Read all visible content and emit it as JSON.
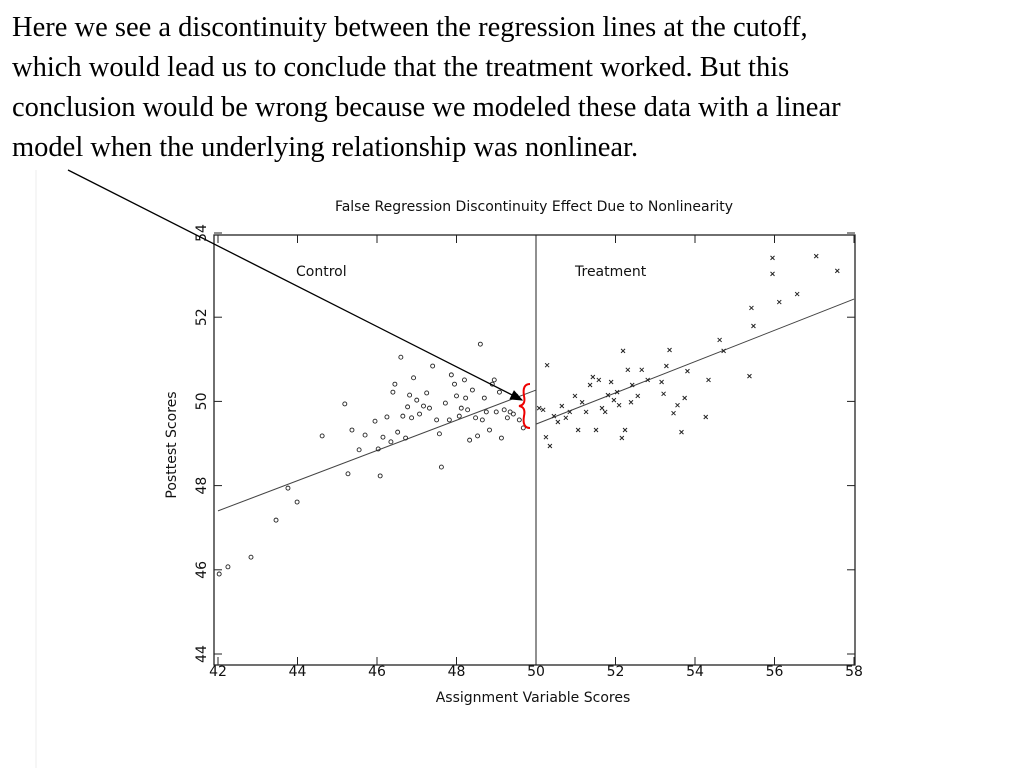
{
  "text_lines": [
    "Here we see a discontinuity between the regression lines at the cutoff,",
    "which would lead us to conclude that the treatment worked. But this",
    "conclusion would be wrong because we modeled these data with a linear",
    "model when the underlying relationship was nonlinear."
  ],
  "chart_data": {
    "type": "scatter",
    "title": "False Regression Discontinuity Effect Due to Nonlinearity",
    "x_label": "Assignment Variable Scores",
    "y_label": "Posttest Scores",
    "xlim": [
      42,
      58
    ],
    "ylim": [
      44,
      54
    ],
    "xticks": [
      42,
      44,
      46,
      48,
      50,
      52,
      54,
      56,
      58
    ],
    "yticks": [
      44,
      46,
      48,
      50,
      52,
      54
    ],
    "cutoff": 50,
    "series": [
      {
        "name": "Control",
        "marker": "circle",
        "color": "#222",
        "x": [
          42.03,
          42.25,
          42.83,
          43.46,
          43.76,
          43.99,
          44.62,
          45.19,
          45.27,
          45.37,
          45.55,
          45.7,
          45.95,
          46.03,
          46.08,
          46.15,
          46.25,
          46.35,
          46.4,
          46.45,
          46.52,
          46.6,
          46.65,
          46.72,
          46.77,
          46.82,
          46.87,
          46.92,
          47.0,
          47.07,
          47.17,
          47.25,
          47.32,
          47.4,
          47.5,
          47.57,
          47.62,
          47.72,
          47.82,
          47.87,
          47.95,
          48.0,
          48.07,
          48.12,
          48.2,
          48.23,
          48.28,
          48.33,
          48.4,
          48.48,
          48.53,
          48.6,
          48.65,
          48.7,
          48.75,
          48.83,
          48.9,
          48.95,
          49.0,
          49.08,
          49.13,
          49.2,
          49.28,
          49.35,
          49.43,
          49.5,
          49.58,
          49.68
        ],
        "values": [
          45.9,
          46.07,
          46.3,
          47.18,
          47.94,
          47.61,
          49.18,
          49.94,
          48.28,
          49.32,
          48.85,
          49.2,
          49.53,
          48.87,
          48.23,
          49.15,
          49.63,
          49.04,
          50.22,
          50.41,
          49.27,
          51.05,
          49.65,
          49.13,
          49.87,
          50.15,
          49.61,
          50.56,
          50.03,
          49.7,
          49.89,
          50.2,
          49.84,
          50.84,
          49.56,
          49.23,
          48.44,
          49.96,
          49.56,
          50.63,
          50.41,
          50.13,
          49.65,
          49.84,
          50.51,
          50.08,
          49.8,
          49.08,
          50.27,
          49.61,
          49.18,
          51.36,
          49.56,
          50.08,
          49.75,
          49.32,
          50.41,
          50.51,
          49.75,
          50.22,
          49.13,
          49.8,
          49.61,
          49.75,
          49.7,
          50.13,
          49.56,
          49.37
        ]
      },
      {
        "name": "Treatment",
        "marker": "cross",
        "color": "#222",
        "x": [
          50.08,
          50.18,
          50.28,
          50.25,
          50.35,
          50.45,
          50.55,
          50.65,
          50.75,
          50.85,
          50.98,
          51.06,
          51.16,
          51.26,
          51.36,
          51.43,
          51.51,
          51.58,
          51.66,
          51.74,
          51.81,
          51.89,
          51.96,
          52.04,
          52.09,
          52.16,
          52.19,
          52.24,
          52.31,
          52.39,
          52.42,
          52.56,
          52.66,
          52.81,
          53.16,
          53.21,
          53.28,
          53.36,
          53.46,
          53.56,
          53.66,
          53.74,
          53.81,
          54.27,
          54.34,
          54.62,
          54.72,
          55.37,
          55.42,
          55.47,
          55.95,
          55.95,
          56.12,
          56.57,
          57.05,
          57.58
        ],
        "values": [
          49.84,
          49.8,
          50.86,
          49.15,
          48.94,
          49.65,
          49.51,
          49.89,
          49.61,
          49.75,
          50.13,
          49.32,
          49.98,
          49.75,
          50.39,
          50.58,
          49.32,
          50.51,
          49.84,
          49.75,
          50.15,
          50.46,
          50.03,
          50.22,
          49.91,
          49.13,
          51.2,
          49.32,
          50.75,
          49.98,
          50.39,
          50.13,
          50.75,
          50.51,
          50.46,
          50.18,
          50.84,
          51.22,
          49.72,
          49.91,
          49.27,
          50.08,
          50.72,
          49.63,
          50.51,
          51.46,
          51.2,
          50.6,
          52.22,
          51.79,
          53.41,
          53.03,
          52.36,
          52.55,
          53.45,
          53.1
        ]
      }
    ],
    "regression_lines": [
      {
        "x": [
          42,
          50
        ],
        "values": [
          47.4,
          50.27
        ]
      },
      {
        "x": [
          50,
          58
        ],
        "values": [
          49.46,
          52.43
        ]
      }
    ]
  }
}
